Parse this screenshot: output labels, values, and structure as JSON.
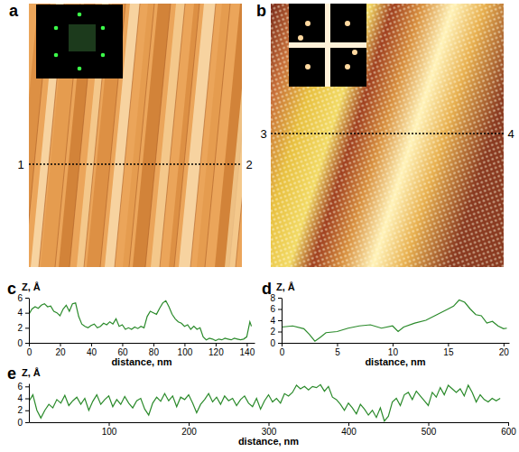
{
  "panel_labels": [
    "a",
    "b",
    "c",
    "d",
    "e"
  ],
  "images": [
    {
      "markers": [
        "1",
        "2"
      ]
    },
    {
      "markers": [
        "3",
        "4"
      ]
    }
  ],
  "chart_data": [
    {
      "type": "line",
      "y_label": "Z, Å",
      "x_label": "distance, nm",
      "color": "#2a8a2a",
      "xlim": [
        0,
        145
      ],
      "xticks": [
        0,
        20,
        40,
        60,
        80,
        100,
        120,
        140
      ],
      "ylim": [
        0,
        6
      ],
      "yticks": [
        0,
        2,
        4,
        6
      ],
      "grid": false,
      "x": [
        0,
        2,
        4,
        6,
        8,
        10,
        12,
        14,
        16,
        18,
        20,
        22,
        24,
        26,
        28,
        30,
        32,
        34,
        36,
        38,
        40,
        42,
        44,
        46,
        48,
        50,
        52,
        54,
        56,
        58,
        60,
        62,
        64,
        66,
        68,
        70,
        72,
        74,
        76,
        78,
        80,
        82,
        84,
        86,
        88,
        90,
        92,
        94,
        96,
        98,
        100,
        102,
        104,
        106,
        108,
        110,
        112,
        114,
        116,
        118,
        120,
        122,
        124,
        126,
        128,
        130,
        132,
        134,
        136,
        138,
        140,
        142,
        143
      ],
      "values": [
        3.8,
        4.5,
        4.8,
        4.6,
        5.0,
        5.2,
        4.8,
        4.9,
        4.2,
        4.0,
        3.6,
        4.5,
        5.0,
        4.2,
        5.2,
        5.3,
        3.5,
        2.5,
        2.2,
        2.0,
        2.3,
        2.5,
        2.0,
        2.2,
        2.6,
        2.4,
        2.8,
        2.5,
        3.2,
        2.2,
        2.4,
        1.8,
        2.0,
        1.8,
        2.1,
        1.9,
        2.2,
        2.0,
        3.5,
        4.2,
        4.0,
        3.8,
        4.6,
        5.3,
        5.6,
        4.8,
        3.8,
        3.2,
        2.8,
        2.6,
        2.2,
        2.4,
        1.8,
        2.2,
        1.8,
        2.0,
        0.8,
        0.4,
        0.6,
        0.5,
        0.3,
        0.5,
        0.4,
        0.6,
        0.5,
        0.4,
        0.6,
        0.5,
        0.4,
        0.5,
        0.8,
        2.8,
        2.2
      ]
    },
    {
      "type": "line",
      "y_label": "Z, Å",
      "x_label": "distance, nm",
      "color": "#2a8a2a",
      "xlim": [
        0,
        20.5
      ],
      "xticks": [
        0,
        5,
        10,
        15,
        20
      ],
      "ylim": [
        0,
        8
      ],
      "yticks": [
        0,
        2,
        4,
        6,
        8
      ],
      "grid": false,
      "x": [
        0,
        1,
        2,
        2.5,
        3,
        3.5,
        4,
        5,
        6,
        7,
        8,
        9,
        10,
        10.5,
        11,
        12,
        13,
        14,
        15,
        15.5,
        16,
        16.5,
        17,
        17.5,
        18,
        18.5,
        19,
        19.5,
        20,
        20.3
      ],
      "values": [
        2.8,
        3.0,
        2.5,
        1.5,
        0.3,
        1.0,
        1.8,
        2.0,
        2.6,
        3.0,
        3.2,
        2.6,
        3.0,
        2.0,
        2.8,
        3.5,
        4.0,
        5.0,
        6.0,
        6.5,
        7.6,
        7.2,
        6.0,
        5.0,
        4.8,
        3.5,
        3.8,
        3.0,
        2.5,
        2.6
      ]
    },
    {
      "type": "line",
      "y_label": "Z, Å",
      "x_label": "distance, nm",
      "color": "#2a8a2a",
      "xlim": [
        0,
        600
      ],
      "xticks": [
        100,
        200,
        300,
        400,
        500,
        600
      ],
      "ylim": [
        0,
        6.5
      ],
      "yticks": [
        0,
        2,
        4,
        6
      ],
      "grid": false,
      "x": [
        0,
        5,
        10,
        15,
        20,
        25,
        30,
        35,
        40,
        45,
        50,
        55,
        60,
        65,
        70,
        75,
        80,
        85,
        90,
        95,
        100,
        105,
        110,
        115,
        120,
        125,
        130,
        135,
        140,
        145,
        150,
        155,
        160,
        165,
        170,
        175,
        180,
        185,
        190,
        195,
        200,
        205,
        210,
        215,
        220,
        225,
        230,
        235,
        240,
        245,
        250,
        255,
        260,
        265,
        270,
        275,
        280,
        285,
        290,
        295,
        300,
        305,
        310,
        315,
        320,
        325,
        330,
        335,
        340,
        345,
        350,
        355,
        360,
        365,
        370,
        375,
        380,
        385,
        390,
        395,
        400,
        405,
        410,
        415,
        420,
        425,
        430,
        435,
        440,
        445,
        450,
        455,
        460,
        465,
        470,
        475,
        480,
        485,
        490,
        495,
        500,
        505,
        510,
        515,
        520,
        525,
        530,
        535,
        540,
        545,
        550,
        555,
        560,
        565,
        570,
        575,
        580,
        585,
        590
      ],
      "values": [
        3.5,
        4.6,
        2.0,
        0.7,
        2.0,
        3.0,
        2.4,
        3.8,
        3.2,
        4.5,
        2.8,
        3.6,
        4.2,
        3.0,
        4.0,
        2.0,
        3.5,
        4.6,
        3.0,
        3.8,
        4.4,
        2.6,
        3.8,
        3.0,
        4.3,
        3.2,
        2.4,
        3.6,
        4.0,
        2.2,
        1.2,
        3.2,
        4.2,
        3.5,
        4.8,
        3.6,
        4.4,
        2.6,
        4.2,
        3.8,
        4.6,
        3.2,
        1.6,
        3.0,
        3.8,
        4.8,
        3.4,
        4.2,
        3.0,
        4.4,
        3.6,
        4.0,
        2.8,
        3.8,
        4.4,
        3.2,
        2.6,
        4.0,
        2.2,
        3.6,
        4.6,
        3.4,
        4.0,
        3.2,
        4.8,
        4.4,
        5.0,
        6.2,
        5.6,
        6.0,
        5.4,
        6.0,
        5.8,
        6.3,
        5.2,
        6.0,
        4.2,
        3.8,
        3.0,
        2.0,
        3.2,
        2.4,
        1.4,
        3.0,
        2.2,
        1.2,
        2.0,
        0.8,
        2.4,
        0.2,
        1.0,
        3.4,
        4.0,
        2.8,
        4.6,
        5.0,
        3.8,
        5.2,
        4.4,
        3.6,
        2.8,
        5.0,
        4.2,
        5.8,
        4.6,
        6.2,
        5.6,
        5.0,
        5.6,
        4.4,
        6.2,
        5.0,
        3.4,
        4.6,
        3.8,
        3.4,
        4.0,
        3.6,
        4.0
      ]
    }
  ]
}
